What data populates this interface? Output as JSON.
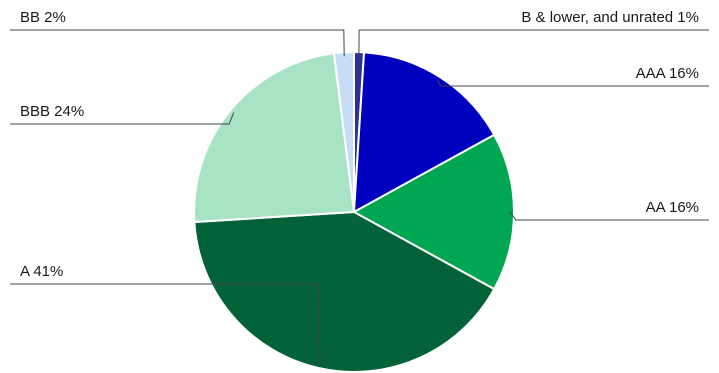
{
  "chart_data": {
    "type": "pie",
    "title": "",
    "start_angle_deg": 0,
    "direction": "clockwise",
    "slices": [
      {
        "label": "B & lower, and unrated",
        "value": 1,
        "display": "B & lower, and unrated 1%",
        "color": "#2e3192",
        "label_side": "right"
      },
      {
        "label": "AAA",
        "value": 16,
        "display": "AAA 16%",
        "color": "#0000bf",
        "label_side": "right"
      },
      {
        "label": "AA",
        "value": 16,
        "display": "AA 16%",
        "color": "#00a651",
        "label_side": "right"
      },
      {
        "label": "A",
        "value": 41,
        "display": "A 41%",
        "color": "#046239",
        "label_side": "left"
      },
      {
        "label": "BBB",
        "value": 24,
        "display": "BBB 24%",
        "color": "#a8e4c4",
        "label_side": "left"
      },
      {
        "label": "BB",
        "value": 2,
        "display": "BB 2%",
        "color": "#c6ddf5",
        "label_side": "left"
      }
    ]
  }
}
